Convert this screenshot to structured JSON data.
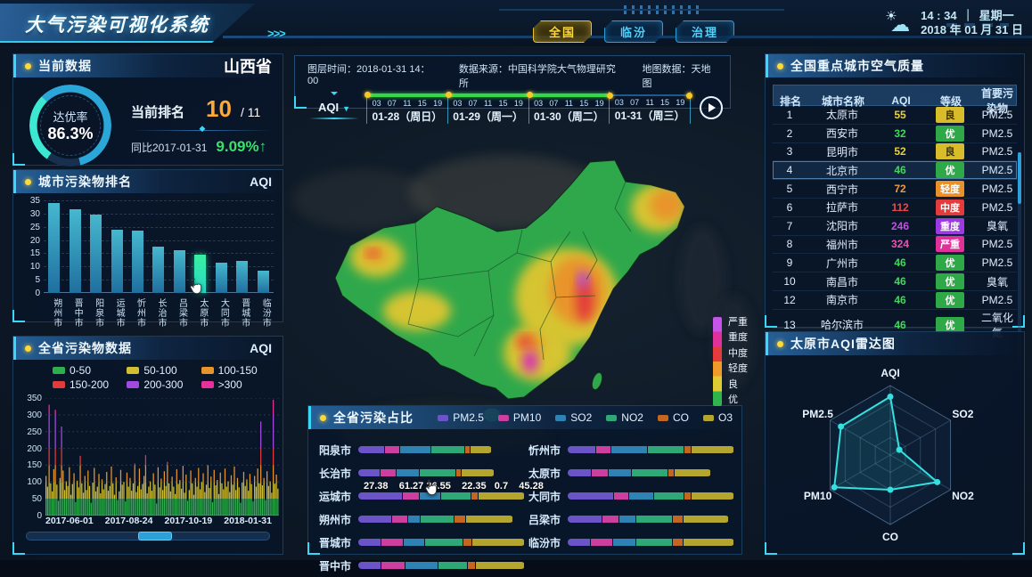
{
  "header": {
    "title": "大气污染可视化系统",
    "arrows": ">>>",
    "nav": [
      {
        "label": "全国",
        "active": true
      },
      {
        "label": "临汾",
        "active": false
      },
      {
        "label": "治理",
        "active": false
      }
    ],
    "clock": {
      "time": "14 : 34",
      "divider": "｜",
      "weekday": "星期一",
      "date": "2018 年 01 月 31 日",
      "weather_icon": "partly-cloudy-icon"
    }
  },
  "current_data": {
    "title": "当前数据",
    "region": "山西省",
    "gauge_label": "达优率",
    "gauge_value": "86.3%",
    "gauge_percent": 86.3,
    "rank_label": "当前排名",
    "rank_value": "10",
    "rank_total": "/ 11",
    "yoy_label": "同比2017-01-31",
    "yoy_value": "9.09%",
    "yoy_dir": "↑"
  },
  "city_ranking": {
    "title": "城市污染物排名",
    "unit": "AQI",
    "ymax": 35,
    "yticks": [
      35,
      30,
      25,
      20,
      15,
      10,
      5,
      0
    ],
    "categories": [
      "朔州市",
      "晋中市",
      "阳泉市",
      "运城市",
      "忻州市",
      "长治市",
      "吕梁市",
      "太原市",
      "大同市",
      "晋城市",
      "临汾市"
    ],
    "values": [
      34,
      31.5,
      29.5,
      24,
      23.5,
      17.5,
      16,
      14.5,
      11.5,
      12,
      8.5
    ],
    "highlight_index": 7
  },
  "province_series": {
    "title": "全省污染物数据",
    "unit": "AQI",
    "ymax": 350,
    "yticks": [
      350,
      300,
      250,
      200,
      150,
      100,
      50,
      0
    ],
    "legend": [
      {
        "label": "0-50",
        "color": "#2fae4e"
      },
      {
        "label": "50-100",
        "color": "#d2be32"
      },
      {
        "label": "100-150",
        "color": "#e8942a"
      },
      {
        "label": "150-200",
        "color": "#e23b3b"
      },
      {
        "label": "200-300",
        "color": "#a24ae0"
      },
      {
        "label": ">300",
        "color": "#e8309a"
      }
    ],
    "xlabels": [
      "2017-06-01",
      "2017-08-24",
      "2017-10-19",
      "2018-01-31"
    ],
    "values": [
      118,
      86,
      330,
      96,
      72,
      138,
      315,
      92,
      44,
      112,
      265,
      134,
      76,
      102,
      88,
      144,
      62,
      94,
      126,
      40,
      104,
      84,
      178,
      96,
      68,
      118,
      76,
      134,
      88,
      38,
      98,
      142,
      72,
      86,
      124,
      66,
      108,
      78,
      94,
      130,
      74,
      88,
      146,
      96,
      62,
      114,
      46,
      72,
      136,
      92,
      100,
      42,
      128,
      86,
      112,
      74,
      96,
      155,
      70,
      88,
      140,
      78,
      94,
      118,
      180,
      66,
      86,
      102,
      74,
      126,
      92,
      36,
      144,
      84,
      110,
      76,
      132,
      88,
      160,
      96,
      72,
      116,
      86,
      64,
      138,
      94,
      106,
      80,
      148,
      68,
      122,
      44,
      76,
      134,
      96,
      62,
      112,
      86,
      142,
      78,
      100,
      126,
      70,
      92,
      150,
      82,
      116,
      40,
      136,
      90,
      106,
      64,
      128,
      96,
      78,
      140,
      86,
      102,
      70,
      120,
      92,
      146,
      76,
      112,
      84,
      38,
      98,
      130,
      88,
      108,
      74,
      124,
      94,
      42,
      118,
      86,
      140,
      96,
      280,
      90,
      112,
      46,
      132,
      88,
      102,
      68,
      345,
      95,
      122,
      80
    ]
  },
  "map_toolbar": {
    "layer_time": "图层时间：2018-01-31 14：00",
    "source": "数据来源：中国科学院大气物理研究所",
    "map_data": "地图数据：天地图",
    "metric": "AQI",
    "hours": [
      "03",
      "07",
      "11",
      "15",
      "19"
    ],
    "days": [
      {
        "label": "01-28（周日）",
        "played": true
      },
      {
        "label": "01-29（周一）",
        "played": true
      },
      {
        "label": "01-30（周二）",
        "played": true
      },
      {
        "label": "01-31（周三）",
        "played": false
      }
    ]
  },
  "map_legend": {
    "labels": [
      "严重",
      "重度",
      "中度",
      "轻度",
      "良",
      "优"
    ],
    "colors": [
      "#c455e8",
      "#e0309a",
      "#e43c3c",
      "#f09a2a",
      "#ddcc33",
      "#2fb44e"
    ]
  },
  "air_quality_table": {
    "title": "全国重点城市空气质量",
    "columns": [
      "排名",
      "城市名称",
      "AQI",
      "等级",
      "首要污染物"
    ],
    "rows": [
      {
        "rank": "1",
        "city": "太原市",
        "aqi": "55",
        "level": "良",
        "pollutant": "PM2.5",
        "highlight": false
      },
      {
        "rank": "2",
        "city": "西安市",
        "aqi": "32",
        "level": "优",
        "pollutant": "PM2.5",
        "highlight": false
      },
      {
        "rank": "3",
        "city": "昆明市",
        "aqi": "52",
        "level": "良",
        "pollutant": "PM2.5",
        "highlight": false
      },
      {
        "rank": "4",
        "city": "北京市",
        "aqi": "46",
        "level": "优",
        "pollutant": "PM2.5",
        "highlight": true
      },
      {
        "rank": "5",
        "city": "西宁市",
        "aqi": "72",
        "level": "轻度",
        "pollutant": "PM2.5",
        "highlight": false
      },
      {
        "rank": "6",
        "city": "拉萨市",
        "aqi": "112",
        "level": "中度",
        "pollutant": "PM2.5",
        "highlight": false
      },
      {
        "rank": "7",
        "city": "沈阳市",
        "aqi": "246",
        "level": "重度",
        "pollutant": "臭氧",
        "highlight": false
      },
      {
        "rank": "8",
        "city": "福州市",
        "aqi": "324",
        "level": "严重",
        "pollutant": "PM2.5",
        "highlight": false
      },
      {
        "rank": "9",
        "city": "广州市",
        "aqi": "46",
        "level": "优",
        "pollutant": "PM2.5",
        "highlight": false
      },
      {
        "rank": "10",
        "city": "南昌市",
        "aqi": "46",
        "level": "优",
        "pollutant": "臭氧",
        "highlight": false
      },
      {
        "rank": "12",
        "city": "南京市",
        "aqi": "46",
        "level": "优",
        "pollutant": "PM2.5",
        "highlight": false
      },
      {
        "rank": "13",
        "city": "哈尔滨市",
        "aqi": "46",
        "level": "优",
        "pollutant": "二氧化氮",
        "highlight": false
      }
    ]
  },
  "radar": {
    "title": "太原市AQI雷达图",
    "axes": [
      "AQI",
      "SO2",
      "NO2",
      "CO",
      "PM10",
      "PM2.5"
    ],
    "values": [
      0.84,
      0.15,
      0.78,
      0.5,
      0.93,
      0.82
    ],
    "line_color": "#35e0e0"
  },
  "pollution_share": {
    "title": "全省污染占比",
    "legend": [
      {
        "label": "PM2.5",
        "color": "#6a54c8"
      },
      {
        "label": "PM10",
        "color": "#cc3f9e"
      },
      {
        "label": "SO2",
        "color": "#2f82b4"
      },
      {
        "label": "NO2",
        "color": "#2fa878"
      },
      {
        "label": "CO",
        "color": "#c4661f"
      },
      {
        "label": "O3",
        "color": "#b4a52f"
      }
    ],
    "tooltip": "27.38    61.27 26.55    22.35   0.7    45.28",
    "tooltip_city": "运城市",
    "left_rows": [
      {
        "city": "阳泉市",
        "len": 0.8,
        "segs": [
          20,
          11,
          24,
          26,
          3,
          16
        ]
      },
      {
        "city": "长治市",
        "len": 0.82,
        "segs": [
          16,
          12,
          17,
          27,
          3,
          25
        ]
      },
      {
        "city": "运城市",
        "len": 1.0,
        "segs": [
          27,
          10,
          13,
          18,
          4,
          28
        ]
      },
      {
        "city": "朔州市",
        "len": 0.93,
        "segs": [
          22,
          10,
          8,
          22,
          7,
          31
        ]
      },
      {
        "city": "晋城市",
        "len": 1.0,
        "segs": [
          14,
          13,
          13,
          23,
          5,
          32
        ]
      },
      {
        "city": "晋中市",
        "len": 1.0,
        "segs": [
          14,
          14,
          20,
          18,
          4,
          30
        ]
      }
    ],
    "right_rows": [
      {
        "city": "忻州市",
        "len": 1.0,
        "segs": [
          17,
          9,
          22,
          22,
          4,
          26
        ]
      },
      {
        "city": "太原市",
        "len": 0.86,
        "segs": [
          14,
          10,
          14,
          22,
          3,
          22
        ]
      },
      {
        "city": "大同市",
        "len": 1.0,
        "segs": [
          28,
          9,
          15,
          18,
          4,
          26
        ]
      },
      {
        "city": "吕梁市",
        "len": 0.97,
        "segs": [
          21,
          10,
          10,
          22,
          6,
          28
        ]
      },
      {
        "city": "临汾市",
        "len": 1.0,
        "segs": [
          14,
          13,
          14,
          22,
          6,
          31
        ]
      }
    ]
  },
  "colors": {
    "accent_cyan": "#3ad8f8",
    "accent_yellow": "#ffd83a",
    "gauge_arc": "#38e8d0",
    "bar_teal_top": "#46b8cf",
    "bar_teal_bottom": "#1f6f9f",
    "bar_highlight": "#3af0a0",
    "map_good": "#2fb44e",
    "panel_bg": "#091628"
  }
}
